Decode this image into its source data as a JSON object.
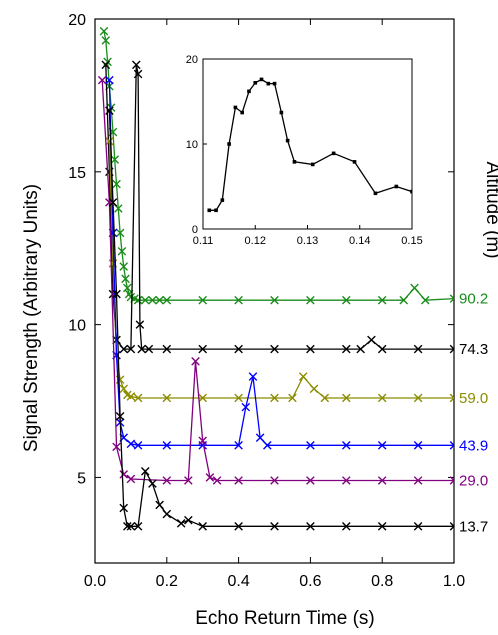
{
  "chart_data": [
    {
      "type": "line",
      "title": "",
      "xlabel": "Echo Return Time (s)",
      "ylabel": "Signal Strength (Arbitrary Units)",
      "right_label": "Altitude (m)",
      "xlim": [
        0.0,
        1.0
      ],
      "ylim": [
        2.2,
        20.0
      ],
      "xticks": [
        "0.0",
        "0.2",
        "0.4",
        "0.6",
        "0.8",
        "1.0"
      ],
      "yticks": [
        "5",
        "10",
        "15",
        "20"
      ],
      "marker": "x",
      "grid": false,
      "series": [
        {
          "name": "90.2",
          "color": "#1a8c1a",
          "points": [
            [
              0.025,
              19.6
            ],
            [
              0.03,
              19.3
            ],
            [
              0.035,
              18.6
            ],
            [
              0.04,
              17.8
            ],
            [
              0.045,
              17.1
            ],
            [
              0.05,
              16.3
            ],
            [
              0.055,
              15.4
            ],
            [
              0.06,
              14.6
            ],
            [
              0.065,
              13.8
            ],
            [
              0.07,
              13.0
            ],
            [
              0.075,
              12.4
            ],
            [
              0.08,
              11.9
            ],
            [
              0.085,
              11.5
            ],
            [
              0.09,
              11.2
            ],
            [
              0.095,
              11.0
            ],
            [
              0.1,
              10.9
            ],
            [
              0.11,
              10.85
            ],
            [
              0.12,
              10.8
            ],
            [
              0.14,
              10.8
            ],
            [
              0.16,
              10.8
            ],
            [
              0.18,
              10.8
            ],
            [
              0.2,
              10.8
            ],
            [
              0.3,
              10.8
            ],
            [
              0.4,
              10.8
            ],
            [
              0.5,
              10.8
            ],
            [
              0.6,
              10.8
            ],
            [
              0.7,
              10.8
            ],
            [
              0.8,
              10.8
            ],
            [
              0.86,
              10.8
            ],
            [
              0.89,
              11.2
            ],
            [
              0.92,
              10.8
            ],
            [
              1.0,
              10.85
            ]
          ]
        },
        {
          "name": "74.3",
          "color": "#000000",
          "points": [
            [
              0.03,
              18.5
            ],
            [
              0.04,
              15.0
            ],
            [
              0.05,
              11.0
            ],
            [
              0.06,
              9.5
            ],
            [
              0.08,
              9.2
            ],
            [
              0.1,
              9.2
            ],
            [
              0.115,
              18.5
            ],
            [
              0.12,
              18.2
            ],
            [
              0.125,
              10.0
            ],
            [
              0.13,
              9.2
            ],
            [
              0.15,
              9.2
            ],
            [
              0.2,
              9.2
            ],
            [
              0.3,
              9.2
            ],
            [
              0.4,
              9.2
            ],
            [
              0.5,
              9.2
            ],
            [
              0.6,
              9.2
            ],
            [
              0.7,
              9.2
            ],
            [
              0.74,
              9.2
            ],
            [
              0.77,
              9.5
            ],
            [
              0.8,
              9.2
            ],
            [
              0.9,
              9.2
            ],
            [
              1.0,
              9.2
            ]
          ]
        },
        {
          "name": "59.0",
          "color": "#8c8c00",
          "points": [
            [
              0.04,
              16.0
            ],
            [
              0.05,
              12.0
            ],
            [
              0.06,
              9.0
            ],
            [
              0.07,
              8.2
            ],
            [
              0.08,
              7.9
            ],
            [
              0.09,
              7.7
            ],
            [
              0.1,
              7.65
            ],
            [
              0.12,
              7.6
            ],
            [
              0.2,
              7.6
            ],
            [
              0.3,
              7.6
            ],
            [
              0.4,
              7.6
            ],
            [
              0.5,
              7.6
            ],
            [
              0.55,
              7.6
            ],
            [
              0.58,
              8.3
            ],
            [
              0.61,
              7.9
            ],
            [
              0.64,
              7.6
            ],
            [
              0.7,
              7.6
            ],
            [
              0.8,
              7.6
            ],
            [
              0.9,
              7.6
            ],
            [
              1.0,
              7.6
            ]
          ]
        },
        {
          "name": "43.9",
          "color": "#0000ff",
          "points": [
            [
              0.04,
              18.0
            ],
            [
              0.05,
              13.0
            ],
            [
              0.06,
              9.0
            ],
            [
              0.07,
              6.8
            ],
            [
              0.08,
              6.3
            ],
            [
              0.1,
              6.1
            ],
            [
              0.12,
              6.05
            ],
            [
              0.2,
              6.05
            ],
            [
              0.3,
              6.05
            ],
            [
              0.4,
              6.05
            ],
            [
              0.42,
              7.3
            ],
            [
              0.44,
              8.3
            ],
            [
              0.46,
              6.3
            ],
            [
              0.48,
              6.05
            ],
            [
              0.6,
              6.05
            ],
            [
              0.7,
              6.05
            ],
            [
              0.8,
              6.05
            ],
            [
              0.9,
              6.05
            ],
            [
              1.0,
              6.05
            ]
          ]
        },
        {
          "name": "29.0",
          "color": "#800080",
          "points": [
            [
              0.02,
              18.0
            ],
            [
              0.04,
              14.0
            ],
            [
              0.06,
              6.0
            ],
            [
              0.08,
              5.1
            ],
            [
              0.1,
              4.95
            ],
            [
              0.2,
              4.9
            ],
            [
              0.26,
              4.9
            ],
            [
              0.28,
              8.8
            ],
            [
              0.3,
              6.2
            ],
            [
              0.32,
              5.0
            ],
            [
              0.34,
              4.9
            ],
            [
              0.4,
              4.9
            ],
            [
              0.5,
              4.9
            ],
            [
              0.6,
              4.9
            ],
            [
              0.7,
              4.9
            ],
            [
              0.8,
              4.9
            ],
            [
              0.9,
              4.9
            ],
            [
              1.0,
              4.9
            ]
          ]
        },
        {
          "name": "13.7",
          "color": "#000000",
          "points": [
            [
              0.04,
              17.0
            ],
            [
              0.05,
              14.0
            ],
            [
              0.06,
              11.0
            ],
            [
              0.07,
              7.0
            ],
            [
              0.08,
              4.0
            ],
            [
              0.09,
              3.4
            ],
            [
              0.1,
              3.4
            ],
            [
              0.12,
              3.4
            ],
            [
              0.14,
              5.2
            ],
            [
              0.16,
              4.8
            ],
            [
              0.18,
              4.1
            ],
            [
              0.2,
              3.8
            ],
            [
              0.24,
              3.5
            ],
            [
              0.26,
              3.6
            ],
            [
              0.3,
              3.4
            ],
            [
              0.4,
              3.4
            ],
            [
              0.5,
              3.4
            ],
            [
              0.6,
              3.4
            ],
            [
              0.7,
              3.4
            ],
            [
              0.8,
              3.4
            ],
            [
              0.9,
              3.4
            ],
            [
              1.0,
              3.4
            ]
          ]
        }
      ]
    },
    {
      "type": "line",
      "title": "",
      "xlabel": "",
      "ylabel": "",
      "xlim": [
        0.11,
        0.15
      ],
      "ylim": [
        0,
        20
      ],
      "xticks": [
        "0.11",
        "0.12",
        "0.13",
        "0.14",
        "0.15"
      ],
      "yticks": [
        "0",
        "10",
        "20"
      ],
      "marker": "square",
      "series": [
        {
          "name": "",
          "color": "#000000",
          "points": [
            [
              0.1112,
              2.2
            ],
            [
              0.1125,
              2.2
            ],
            [
              0.1137,
              3.4
            ],
            [
              0.115,
              10.0
            ],
            [
              0.1162,
              14.3
            ],
            [
              0.1175,
              13.7
            ],
            [
              0.1188,
              16.2
            ],
            [
              0.12,
              17.2
            ],
            [
              0.1212,
              17.6
            ],
            [
              0.1225,
              17.1
            ],
            [
              0.1237,
              17.1
            ],
            [
              0.125,
              13.7
            ],
            [
              0.1262,
              10.4
            ],
            [
              0.1275,
              7.9
            ],
            [
              0.131,
              7.6
            ],
            [
              0.135,
              8.9
            ],
            [
              0.139,
              7.9
            ],
            [
              0.143,
              4.2
            ],
            [
              0.147,
              5.0
            ],
            [
              0.15,
              4.4
            ]
          ]
        }
      ]
    }
  ]
}
